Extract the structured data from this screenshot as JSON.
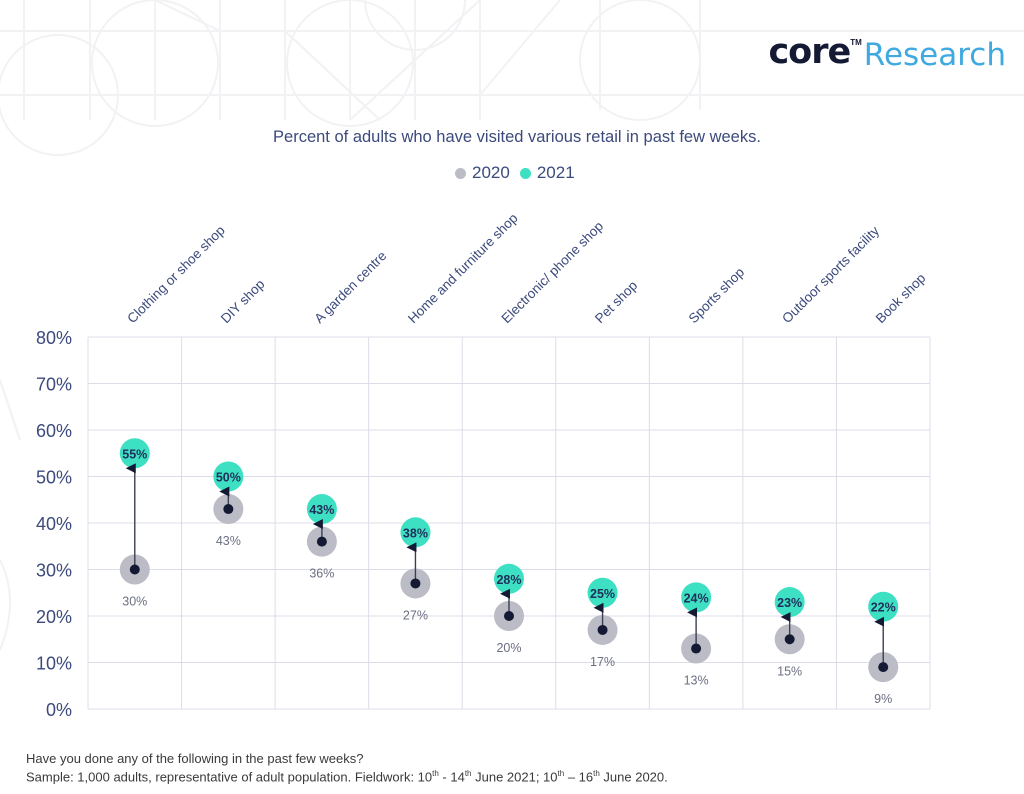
{
  "brand": {
    "logo_core": "core",
    "logo_tm": "TM",
    "logo_research": "Research"
  },
  "colors": {
    "series_2020": "#bbbcc6",
    "series_2021": "#3de0c2",
    "inner_dot": "#141a33",
    "axis_text": "#3c4a7c",
    "value_label_2020": "#6b6f82",
    "grid": "#dcdde8",
    "logo_core": "#141a33",
    "logo_research": "#3fa9e0"
  },
  "chart_data": {
    "type": "scatter",
    "subtype": "dumbbell-arrow",
    "title": "Percent of adults who have visited various retail in past few weeks.",
    "xlabel": "",
    "ylabel": "",
    "ylim": [
      0,
      80
    ],
    "yticks": [
      0,
      10,
      20,
      30,
      40,
      50,
      60,
      70,
      80
    ],
    "ytick_labels": [
      "0%",
      "10%",
      "20%",
      "30%",
      "40%",
      "50%",
      "60%",
      "70%",
      "80%"
    ],
    "grid": true,
    "legend_position": "top-center",
    "categories": [
      "Clothing or shoe shop",
      "DIY shop",
      "A garden centre",
      "Home and furniture shop",
      "Electronic/ phone shop",
      "Pet shop",
      "Sports shop",
      "Outdoor sports facility",
      "Book shop"
    ],
    "series": [
      {
        "name": "2020",
        "values": [
          30,
          43,
          36,
          27,
          20,
          17,
          13,
          15,
          9
        ],
        "labels": [
          "30%",
          "43%",
          "36%",
          "27%",
          "20%",
          "17%",
          "13%",
          "15%",
          "9%"
        ]
      },
      {
        "name": "2021",
        "values": [
          55,
          50,
          43,
          38,
          28,
          25,
          24,
          23,
          22
        ],
        "labels": [
          "55%",
          "50%",
          "43%",
          "38%",
          "28%",
          "25%",
          "24%",
          "23%",
          "22%"
        ]
      }
    ]
  },
  "legend": {
    "items": [
      {
        "label": "2020"
      },
      {
        "label": "2021"
      }
    ]
  },
  "footnote": {
    "question": "Have you done any of the following in the past few weeks?",
    "sample_prefix": "Sample: 1,000 adults, representative of adult population. Fieldwork: 10",
    "sup1": "th",
    "part2": " - 14",
    "sup2": "th",
    "part3": " June 2021; 10",
    "sup3": "th",
    "part4": " – 16",
    "sup4": "th",
    "part5": " June 2020."
  }
}
